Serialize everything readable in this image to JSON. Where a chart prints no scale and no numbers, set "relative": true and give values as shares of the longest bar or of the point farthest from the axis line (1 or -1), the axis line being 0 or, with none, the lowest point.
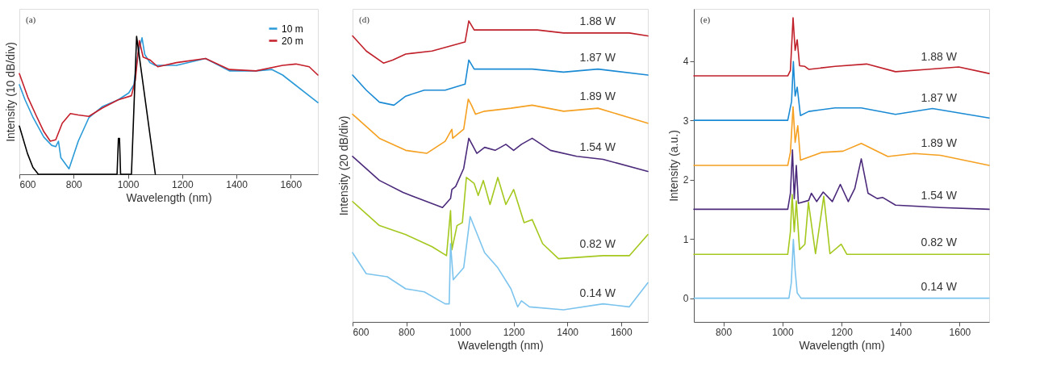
{
  "chart_data": [
    {
      "type": "line",
      "relative": true,
      "xlabel": "Wavelength (nm)",
      "ylabel": "Intensity (10 dB/div)",
      "annotations": [
        "(a)"
      ],
      "legend": "top right",
      "tick_labels": "x",
      "xlim": [
        600,
        1700
      ],
      "xticks": [
        600,
        800,
        1000,
        1200,
        1400,
        1600
      ],
      "series": [
        {
          "name": "10 m",
          "color": "#2a9ad8",
          "x": [
            600,
            621,
            651,
            690,
            719,
            734,
            744,
            753,
            783,
            817,
            856,
            905,
            964,
            1003,
            1022,
            1037,
            1052,
            1062,
            1081,
            1101,
            1179,
            1286,
            1374,
            1472,
            1531,
            1570,
            1700
          ],
          "values": [
            0.65,
            0.54,
            0.41,
            0.27,
            0.21,
            0.2,
            0.24,
            0.12,
            0.04,
            0.24,
            0.41,
            0.49,
            0.54,
            0.59,
            0.65,
            0.87,
            0.99,
            0.87,
            0.81,
            0.79,
            0.79,
            0.84,
            0.75,
            0.75,
            0.76,
            0.72,
            0.52
          ]
        },
        {
          "name": "20 m",
          "color": "#c41e2a",
          "x": [
            600,
            631,
            661,
            690,
            714,
            734,
            758,
            788,
            817,
            856,
            905,
            964,
            1013,
            1027,
            1042,
            1056,
            1081,
            1110,
            1179,
            1286,
            1374,
            1472,
            1570,
            1619,
            1668,
            1700
          ],
          "values": [
            0.73,
            0.56,
            0.43,
            0.31,
            0.24,
            0.25,
            0.37,
            0.44,
            0.43,
            0.42,
            0.48,
            0.54,
            0.57,
            0.68,
            0.97,
            0.85,
            0.83,
            0.78,
            0.81,
            0.84,
            0.76,
            0.75,
            0.79,
            0.8,
            0.78,
            0.72
          ]
        },
        {
          "color": "#000000",
          "x": [
            600,
            630,
            650,
            670,
            960,
            965,
            969,
            973,
            978,
            1013,
            1032,
            1101
          ],
          "values": [
            0.35,
            0.15,
            0.05,
            0,
            0,
            0.26,
            0.26,
            0,
            0,
            0,
            1.0,
            0
          ]
        }
      ]
    },
    {
      "type": "line",
      "relative": true,
      "xlabel": "Wavelength (nm)",
      "ylabel": "Intensity (20 dB/div)",
      "annotations": [
        "(d)"
      ],
      "tick_labels": "x",
      "xlim": [
        600,
        1700
      ],
      "xticks": [
        600,
        800,
        1000,
        1200,
        1400,
        1600
      ],
      "series": [
        {
          "name": "1.88 W",
          "color": "#c0202a",
          "x": [
            600,
            651,
            715,
            749,
            798,
            896,
            1019,
            1033,
            1053,
            1073,
            1190,
            1288,
            1386,
            1533,
            1631,
            1700
          ],
          "values": [
            0.95,
            0.9,
            0.86,
            0.87,
            0.89,
            0.9,
            0.93,
            1.0,
            0.97,
            0.97,
            0.97,
            0.97,
            0.96,
            0.96,
            0.96,
            0.95
          ]
        },
        {
          "name": "1.87 W",
          "color": "#1a8ad4",
          "x": [
            600,
            651,
            700,
            754,
            798,
            867,
            945,
            1019,
            1033,
            1053,
            1141,
            1269,
            1386,
            1514,
            1700
          ],
          "values": [
            0.82,
            0.77,
            0.73,
            0.72,
            0.75,
            0.77,
            0.77,
            0.79,
            0.87,
            0.84,
            0.84,
            0.84,
            0.83,
            0.84,
            0.82
          ]
        },
        {
          "name": "1.89 W",
          "color": "#f5a020",
          "x": [
            600,
            700,
            798,
            876,
            945,
            970,
            973,
            1014,
            1031,
            1043,
            1058,
            1092,
            1190,
            1269,
            1386,
            1514,
            1700
          ],
          "values": [
            0.69,
            0.61,
            0.57,
            0.56,
            0.6,
            0.64,
            0.61,
            0.64,
            0.74,
            0.72,
            0.69,
            0.7,
            0.71,
            0.72,
            0.7,
            0.71,
            0.66
          ]
        },
        {
          "name": "1.54 W",
          "color": "#4b2a7b",
          "x": [
            600,
            700,
            788,
            935,
            965,
            970,
            984,
            1014,
            1033,
            1063,
            1092,
            1131,
            1171,
            1200,
            1229,
            1269,
            1337,
            1435,
            1533,
            1700
          ],
          "values": [
            0.55,
            0.47,
            0.43,
            0.38,
            0.41,
            0.44,
            0.45,
            0.51,
            0.61,
            0.56,
            0.58,
            0.57,
            0.59,
            0.57,
            0.59,
            0.61,
            0.57,
            0.55,
            0.54,
            0.5
          ]
        },
        {
          "name": "0.82 W",
          "color": "#a4c81e",
          "x": [
            600,
            700,
            798,
            896,
            950,
            965,
            970,
            989,
            1009,
            1024,
            1053,
            1068,
            1087,
            1112,
            1141,
            1171,
            1200,
            1239,
            1269,
            1308,
            1367,
            1533,
            1631,
            1700
          ],
          "values": [
            0.4,
            0.32,
            0.29,
            0.25,
            0.22,
            0.37,
            0.24,
            0.32,
            0.33,
            0.48,
            0.46,
            0.42,
            0.47,
            0.39,
            0.48,
            0.39,
            0.44,
            0.33,
            0.34,
            0.26,
            0.21,
            0.22,
            0.22,
            0.29
          ]
        },
        {
          "name": "0.14 W",
          "color": "#7cc4ee",
          "x": [
            600,
            651,
            729,
            798,
            867,
            945,
            960,
            965,
            975,
            1014,
            1038,
            1092,
            1141,
            1190,
            1215,
            1229,
            1259,
            1386,
            1533,
            1631,
            1700
          ],
          "values": [
            0.23,
            0.16,
            0.15,
            0.11,
            0.1,
            0.06,
            0.06,
            0.26,
            0.14,
            0.18,
            0.35,
            0.23,
            0.18,
            0.11,
            0.05,
            0.07,
            0.05,
            0.04,
            0.06,
            0.05,
            0.13
          ]
        }
      ]
    },
    {
      "type": "line",
      "xlabel": "Wavelength (nm)",
      "ylabel": "Intensity (a.u.)",
      "annotations": [
        "(e)"
      ],
      "xlim": [
        700,
        1700
      ],
      "xticks": [
        800,
        1000,
        1200,
        1400,
        1600
      ],
      "ylim": [
        -0.4,
        4.88
      ],
      "yticks": [
        0,
        1,
        2,
        3,
        4
      ],
      "series": [
        {
          "name": "1.88 W",
          "color": "#c0202a",
          "x": [
            700,
            1018,
            1027,
            1036,
            1043,
            1050,
            1058,
            1076,
            1089,
            1178,
            1285,
            1383,
            1490,
            1597,
            1700
          ],
          "values": [
            3.75,
            3.75,
            3.84,
            4.73,
            4.18,
            4.36,
            3.92,
            3.91,
            3.86,
            3.91,
            3.95,
            3.82,
            3.86,
            3.9,
            3.79
          ]
        },
        {
          "name": "1.87 W",
          "color": "#1a8ad4",
          "x": [
            700,
            1018,
            1031,
            1037,
            1043,
            1050,
            1061,
            1089,
            1178,
            1267,
            1383,
            1508,
            1700
          ],
          "values": [
            3.0,
            3.0,
            3.32,
            3.99,
            3.41,
            3.56,
            3.08,
            3.15,
            3.21,
            3.21,
            3.1,
            3.2,
            3.04
          ]
        },
        {
          "name": "1.89 W",
          "color": "#f5a020",
          "x": [
            700,
            1018,
            1027,
            1036,
            1043,
            1052,
            1061,
            1134,
            1205,
            1267,
            1357,
            1446,
            1535,
            1700
          ],
          "values": [
            2.24,
            2.24,
            2.46,
            3.23,
            2.63,
            2.91,
            2.33,
            2.46,
            2.48,
            2.61,
            2.39,
            2.44,
            2.41,
            2.24
          ]
        },
        {
          "name": "1.54 W",
          "color": "#4b2a7b",
          "x": [
            700,
            1018,
            1027,
            1034,
            1040,
            1047,
            1054,
            1089,
            1098,
            1116,
            1138,
            1169,
            1196,
            1223,
            1245,
            1267,
            1290,
            1321,
            1339,
            1383,
            1535,
            1700
          ],
          "values": [
            1.5,
            1.5,
            1.77,
            2.5,
            1.68,
            2.24,
            1.6,
            1.65,
            1.77,
            1.63,
            1.79,
            1.63,
            1.92,
            1.63,
            1.85,
            2.35,
            1.77,
            1.68,
            1.7,
            1.57,
            1.53,
            1.5
          ]
        },
        {
          "name": "0.82 W",
          "color": "#a4c81e",
          "x": [
            700,
            1018,
            1027,
            1033,
            1040,
            1047,
            1058,
            1076,
            1088,
            1112,
            1140,
            1161,
            1199,
            1218,
            1700
          ],
          "values": [
            0.74,
            0.74,
            1.12,
            1.75,
            1.12,
            1.64,
            0.82,
            0.91,
            1.62,
            0.75,
            1.72,
            0.75,
            0.91,
            0.74,
            0.74
          ]
        },
        {
          "name": "0.14 W",
          "color": "#7cc4ee",
          "x": [
            700,
            1022,
            1030,
            1037,
            1043,
            1050,
            1063,
            1700
          ],
          "values": [
            0,
            0,
            0.26,
            0.99,
            0.47,
            0.09,
            0,
            0
          ]
        }
      ]
    }
  ]
}
